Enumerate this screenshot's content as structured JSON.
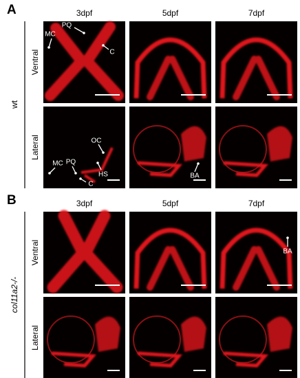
{
  "figure": {
    "panels": [
      {
        "label": "A",
        "genotype": "wt",
        "columns": [
          "3dpf",
          "5dpf",
          "7dpf"
        ],
        "rows": [
          "Ventral",
          "Lateral"
        ],
        "annotations": [
          "MC",
          "PQ",
          "C",
          "OC",
          "MC",
          "PQ",
          "HS",
          "C",
          "BA"
        ]
      },
      {
        "label": "B",
        "genotype": "col11a2-/-",
        "columns": [
          "3dpf",
          "5dpf",
          "7dpf"
        ],
        "rows": [
          "Ventral",
          "Lateral"
        ],
        "annotations": [
          "BA"
        ]
      }
    ]
  }
}
